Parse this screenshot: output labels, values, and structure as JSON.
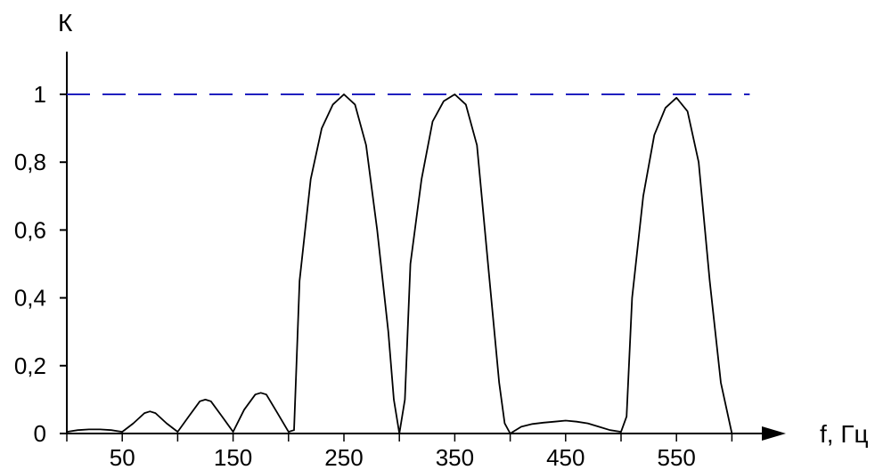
{
  "chart_data": {
    "type": "line",
    "title": "",
    "xlabel": "f, Гц",
    "ylabel": "К",
    "xlim": [
      0,
      650
    ],
    "ylim": [
      0,
      1.1
    ],
    "grid": false,
    "colors": {
      "curve": "#000000",
      "reference": "#1f1fbf",
      "axes": "#000000"
    },
    "x_ticks": [
      {
        "value": 50,
        "label": "50"
      },
      {
        "value": 150,
        "label": "150"
      },
      {
        "value": 250,
        "label": "250"
      },
      {
        "value": 350,
        "label": "350"
      },
      {
        "value": 450,
        "label": "450"
      },
      {
        "value": 550,
        "label": "550"
      }
    ],
    "x_minor_ticks": [
      0,
      100,
      200,
      300,
      400,
      500,
      600
    ],
    "y_ticks": [
      {
        "value": 0,
        "label": "0"
      },
      {
        "value": 0.2,
        "label": "0,2"
      },
      {
        "value": 0.4,
        "label": "0,4"
      },
      {
        "value": 0.6,
        "label": "0,6"
      },
      {
        "value": 0.8,
        "label": "0,8"
      },
      {
        "value": 1,
        "label": "1"
      }
    ],
    "reference_line": {
      "y": 1,
      "style": "dashed",
      "x_range": [
        0,
        600
      ]
    },
    "series": [
      {
        "x": [
          0,
          10,
          20,
          30,
          40,
          50,
          60,
          70,
          75,
          80,
          90,
          100,
          110,
          120,
          125,
          130,
          140,
          150,
          160,
          170,
          175,
          180,
          190,
          200,
          205,
          210,
          220,
          230,
          240,
          250,
          260,
          270,
          280,
          290,
          295,
          300,
          305,
          310,
          320,
          330,
          340,
          350,
          360,
          370,
          380,
          390,
          395,
          400,
          410,
          420,
          430,
          440,
          450,
          460,
          470,
          480,
          490,
          500,
          505,
          510,
          520,
          530,
          540,
          550,
          560,
          570,
          580,
          590,
          600
        ],
        "y": [
          0.005,
          0.01,
          0.012,
          0.012,
          0.01,
          0.005,
          0.03,
          0.06,
          0.065,
          0.06,
          0.03,
          0.005,
          0.05,
          0.095,
          0.1,
          0.095,
          0.05,
          0.005,
          0.07,
          0.115,
          0.12,
          0.115,
          0.06,
          0.005,
          0.01,
          0.45,
          0.75,
          0.9,
          0.97,
          1.0,
          0.97,
          0.85,
          0.6,
          0.3,
          0.1,
          0.0,
          0.1,
          0.5,
          0.75,
          0.92,
          0.98,
          1.0,
          0.97,
          0.85,
          0.5,
          0.15,
          0.03,
          0.0,
          0.02,
          0.028,
          0.032,
          0.035,
          0.038,
          0.035,
          0.03,
          0.02,
          0.01,
          0.005,
          0.05,
          0.4,
          0.7,
          0.88,
          0.96,
          0.99,
          0.95,
          0.8,
          0.45,
          0.15,
          0.0
        ]
      }
    ]
  }
}
